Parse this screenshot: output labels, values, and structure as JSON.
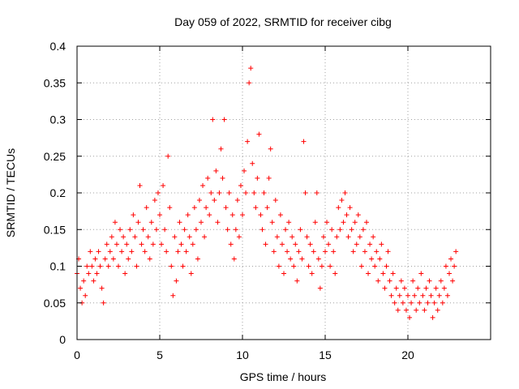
{
  "chart_data": {
    "type": "scatter",
    "title": "Day 059 of 2022, SRMTID for receiver cibg",
    "xlabel": "GPS time / hours",
    "ylabel": "SRMTID / TECUs",
    "xlim": [
      0,
      25
    ],
    "ylim": [
      0,
      0.4
    ],
    "xticks": [
      0,
      5,
      10,
      15,
      20
    ],
    "xtick_labels": [
      "0",
      "5",
      "10",
      "15",
      "20"
    ],
    "yticks": [
      0,
      0.05,
      0.1,
      0.15,
      0.2,
      0.25,
      0.3,
      0.35,
      0.4
    ],
    "ytick_labels": [
      "0",
      "0.05",
      "0.1",
      "0.15",
      "0.2",
      "0.25",
      "0.3",
      "0.35",
      "0.4"
    ],
    "grid": true,
    "marker": "plus",
    "color": "#ff0000",
    "series": [
      {
        "name": "SRMTID",
        "points": [
          [
            0.0,
            0.09
          ],
          [
            0.1,
            0.11
          ],
          [
            0.2,
            0.07
          ],
          [
            0.3,
            0.05
          ],
          [
            0.4,
            0.08
          ],
          [
            0.5,
            0.06
          ],
          [
            0.6,
            0.1
          ],
          [
            0.7,
            0.09
          ],
          [
            0.8,
            0.12
          ],
          [
            0.9,
            0.1
          ],
          [
            1.0,
            0.08
          ],
          [
            1.1,
            0.11
          ],
          [
            1.2,
            0.09
          ],
          [
            1.3,
            0.12
          ],
          [
            1.4,
            0.1
          ],
          [
            1.5,
            0.07
          ],
          [
            1.6,
            0.05
          ],
          [
            1.7,
            0.11
          ],
          [
            1.8,
            0.13
          ],
          [
            1.9,
            0.1
          ],
          [
            2.0,
            0.12
          ],
          [
            2.1,
            0.14
          ],
          [
            2.2,
            0.11
          ],
          [
            2.3,
            0.16
          ],
          [
            2.4,
            0.13
          ],
          [
            2.5,
            0.1
          ],
          [
            2.6,
            0.15
          ],
          [
            2.7,
            0.12
          ],
          [
            2.8,
            0.14
          ],
          [
            2.9,
            0.09
          ],
          [
            3.0,
            0.13
          ],
          [
            3.1,
            0.11
          ],
          [
            3.2,
            0.15
          ],
          [
            3.3,
            0.12
          ],
          [
            3.4,
            0.17
          ],
          [
            3.5,
            0.14
          ],
          [
            3.6,
            0.1
          ],
          [
            3.7,
            0.16
          ],
          [
            3.8,
            0.21
          ],
          [
            3.9,
            0.13
          ],
          [
            4.0,
            0.15
          ],
          [
            4.1,
            0.12
          ],
          [
            4.2,
            0.18
          ],
          [
            4.3,
            0.14
          ],
          [
            4.4,
            0.11
          ],
          [
            4.5,
            0.16
          ],
          [
            4.6,
            0.13
          ],
          [
            4.7,
            0.19
          ],
          [
            4.8,
            0.15
          ],
          [
            4.9,
            0.2
          ],
          [
            5.0,
            0.17
          ],
          [
            5.1,
            0.13
          ],
          [
            5.2,
            0.21
          ],
          [
            5.3,
            0.15
          ],
          [
            5.4,
            0.12
          ],
          [
            5.5,
            0.25
          ],
          [
            5.6,
            0.18
          ],
          [
            5.7,
            0.1
          ],
          [
            5.8,
            0.06
          ],
          [
            5.9,
            0.14
          ],
          [
            6.0,
            0.08
          ],
          [
            6.1,
            0.12
          ],
          [
            6.2,
            0.16
          ],
          [
            6.3,
            0.13
          ],
          [
            6.4,
            0.1
          ],
          [
            6.5,
            0.15
          ],
          [
            6.6,
            0.12
          ],
          [
            6.7,
            0.17
          ],
          [
            6.8,
            0.14
          ],
          [
            6.9,
            0.09
          ],
          [
            7.0,
            0.13
          ],
          [
            7.1,
            0.18
          ],
          [
            7.2,
            0.15
          ],
          [
            7.3,
            0.11
          ],
          [
            7.4,
            0.19
          ],
          [
            7.5,
            0.16
          ],
          [
            7.6,
            0.21
          ],
          [
            7.7,
            0.14
          ],
          [
            7.8,
            0.18
          ],
          [
            7.9,
            0.22
          ],
          [
            8.0,
            0.17
          ],
          [
            8.1,
            0.2
          ],
          [
            8.2,
            0.3
          ],
          [
            8.3,
            0.19
          ],
          [
            8.4,
            0.23
          ],
          [
            8.5,
            0.16
          ],
          [
            8.6,
            0.2
          ],
          [
            8.7,
            0.26
          ],
          [
            8.8,
            0.22
          ],
          [
            8.9,
            0.3
          ],
          [
            9.0,
            0.18
          ],
          [
            9.1,
            0.15
          ],
          [
            9.2,
            0.2
          ],
          [
            9.3,
            0.13
          ],
          [
            9.4,
            0.17
          ],
          [
            9.5,
            0.11
          ],
          [
            9.6,
            0.15
          ],
          [
            9.7,
            0.19
          ],
          [
            9.8,
            0.14
          ],
          [
            9.9,
            0.21
          ],
          [
            10.0,
            0.17
          ],
          [
            10.1,
            0.23
          ],
          [
            10.2,
            0.2
          ],
          [
            10.3,
            0.27
          ],
          [
            10.4,
            0.35
          ],
          [
            10.5,
            0.37
          ],
          [
            10.6,
            0.24
          ],
          [
            10.7,
            0.2
          ],
          [
            10.8,
            0.18
          ],
          [
            10.9,
            0.22
          ],
          [
            11.0,
            0.28
          ],
          [
            11.1,
            0.17
          ],
          [
            11.2,
            0.15
          ],
          [
            11.3,
            0.2
          ],
          [
            11.4,
            0.13
          ],
          [
            11.5,
            0.18
          ],
          [
            11.6,
            0.22
          ],
          [
            11.7,
            0.26
          ],
          [
            11.8,
            0.16
          ],
          [
            11.9,
            0.12
          ],
          [
            12.0,
            0.19
          ],
          [
            12.1,
            0.14
          ],
          [
            12.2,
            0.1
          ],
          [
            12.3,
            0.17
          ],
          [
            12.4,
            0.13
          ],
          [
            12.5,
            0.09
          ],
          [
            12.6,
            0.15
          ],
          [
            12.7,
            0.12
          ],
          [
            12.8,
            0.16
          ],
          [
            12.9,
            0.11
          ],
          [
            13.0,
            0.14
          ],
          [
            13.1,
            0.1
          ],
          [
            13.2,
            0.13
          ],
          [
            13.3,
            0.08
          ],
          [
            13.4,
            0.12
          ],
          [
            13.5,
            0.15
          ],
          [
            13.6,
            0.11
          ],
          [
            13.7,
            0.27
          ],
          [
            13.8,
            0.2
          ],
          [
            13.9,
            0.14
          ],
          [
            14.0,
            0.1
          ],
          [
            14.1,
            0.13
          ],
          [
            14.2,
            0.09
          ],
          [
            14.3,
            0.12
          ],
          [
            14.4,
            0.16
          ],
          [
            14.5,
            0.2
          ],
          [
            14.6,
            0.11
          ],
          [
            14.7,
            0.07
          ],
          [
            14.8,
            0.1
          ],
          [
            14.9,
            0.14
          ],
          [
            15.0,
            0.12
          ],
          [
            15.1,
            0.16
          ],
          [
            15.2,
            0.13
          ],
          [
            15.3,
            0.1
          ],
          [
            15.4,
            0.15
          ],
          [
            15.5,
            0.12
          ],
          [
            15.6,
            0.09
          ],
          [
            15.7,
            0.14
          ],
          [
            15.8,
            0.18
          ],
          [
            15.9,
            0.15
          ],
          [
            16.0,
            0.19
          ],
          [
            16.1,
            0.16
          ],
          [
            16.2,
            0.2
          ],
          [
            16.3,
            0.17
          ],
          [
            16.4,
            0.14
          ],
          [
            16.5,
            0.18
          ],
          [
            16.6,
            0.15
          ],
          [
            16.7,
            0.12
          ],
          [
            16.8,
            0.16
          ],
          [
            16.9,
            0.13
          ],
          [
            17.0,
            0.17
          ],
          [
            17.1,
            0.14
          ],
          [
            17.2,
            0.1
          ],
          [
            17.3,
            0.15
          ],
          [
            17.4,
            0.12
          ],
          [
            17.5,
            0.16
          ],
          [
            17.6,
            0.09
          ],
          [
            17.7,
            0.13
          ],
          [
            17.8,
            0.11
          ],
          [
            17.9,
            0.14
          ],
          [
            18.0,
            0.1
          ],
          [
            18.1,
            0.12
          ],
          [
            18.2,
            0.08
          ],
          [
            18.3,
            0.11
          ],
          [
            18.4,
            0.13
          ],
          [
            18.5,
            0.09
          ],
          [
            18.6,
            0.07
          ],
          [
            18.7,
            0.1
          ],
          [
            18.8,
            0.12
          ],
          [
            18.9,
            0.08
          ],
          [
            19.0,
            0.06
          ],
          [
            19.1,
            0.09
          ],
          [
            19.2,
            0.05
          ],
          [
            19.3,
            0.07
          ],
          [
            19.4,
            0.04
          ],
          [
            19.5,
            0.06
          ],
          [
            19.6,
            0.08
          ],
          [
            19.7,
            0.05
          ],
          [
            19.8,
            0.07
          ],
          [
            19.9,
            0.04
          ],
          [
            20.0,
            0.06
          ],
          [
            20.1,
            0.03
          ],
          [
            20.2,
            0.05
          ],
          [
            20.3,
            0.08
          ],
          [
            20.4,
            0.06
          ],
          [
            20.5,
            0.04
          ],
          [
            20.6,
            0.07
          ],
          [
            20.7,
            0.05
          ],
          [
            20.8,
            0.09
          ],
          [
            20.9,
            0.06
          ],
          [
            21.0,
            0.04
          ],
          [
            21.1,
            0.07
          ],
          [
            21.2,
            0.05
          ],
          [
            21.3,
            0.08
          ],
          [
            21.4,
            0.06
          ],
          [
            21.5,
            0.03
          ],
          [
            21.6,
            0.05
          ],
          [
            21.7,
            0.07
          ],
          [
            21.8,
            0.04
          ],
          [
            21.9,
            0.06
          ],
          [
            22.0,
            0.08
          ],
          [
            22.1,
            0.05
          ],
          [
            22.2,
            0.07
          ],
          [
            22.3,
            0.1
          ],
          [
            22.4,
            0.06
          ],
          [
            22.5,
            0.09
          ],
          [
            22.6,
            0.11
          ],
          [
            22.7,
            0.08
          ],
          [
            22.8,
            0.1
          ],
          [
            22.9,
            0.12
          ]
        ]
      }
    ]
  }
}
